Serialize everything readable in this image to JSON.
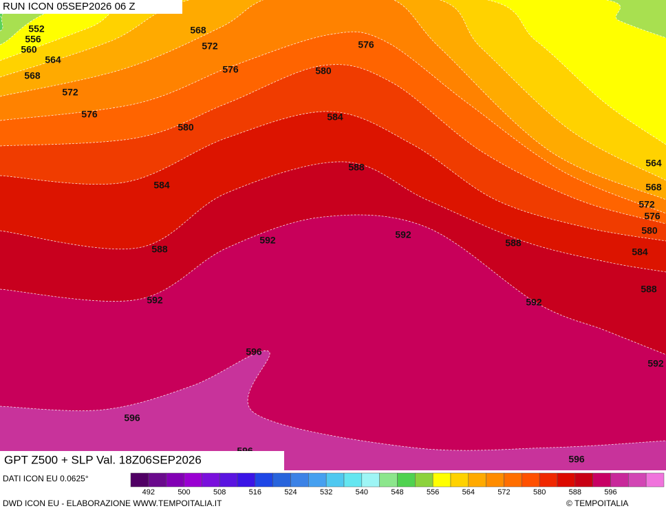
{
  "header": {
    "run": "RUN ICON 05SEP2026 06 Z"
  },
  "map": {
    "title": "GPT Z500 + SLP Val. 18Z06SEP2026",
    "contour_labels": [
      552,
      556,
      560,
      564,
      568,
      572,
      576,
      568,
      572,
      576,
      576,
      580,
      580,
      584,
      584,
      588,
      588,
      592,
      592,
      588,
      592,
      592,
      564,
      568,
      572,
      576,
      580,
      584,
      588,
      592,
      596,
      596,
      596,
      596
    ]
  },
  "legend": {
    "source": "DATI ICON EU 0.0625°",
    "colors": [
      "#500064",
      "#6a0a8c",
      "#8200b4",
      "#9a00d2",
      "#7a10dc",
      "#5a14e0",
      "#3a14e6",
      "#1e46e6",
      "#2864dc",
      "#3c82e6",
      "#46a0f0",
      "#50c8f0",
      "#64e6f0",
      "#9ef5f5",
      "#8ce68c",
      "#50d250",
      "#8cd23c",
      "#ffff00",
      "#ffd200",
      "#ffaa00",
      "#ff8c00",
      "#ff6e00",
      "#ff5000",
      "#f02800",
      "#dc0a00",
      "#c80014",
      "#c80064",
      "#c8289a",
      "#d246b4",
      "#f073dc"
    ],
    "ticks": [
      492,
      500,
      508,
      516,
      524,
      532,
      540,
      548,
      556,
      564,
      572,
      580,
      588,
      596
    ]
  },
  "footer": {
    "credit": "DWD ICON EU - ELABORAZIONE WWW.TEMPOITALIA.IT",
    "copyright": "© TEMPOITALIA"
  }
}
